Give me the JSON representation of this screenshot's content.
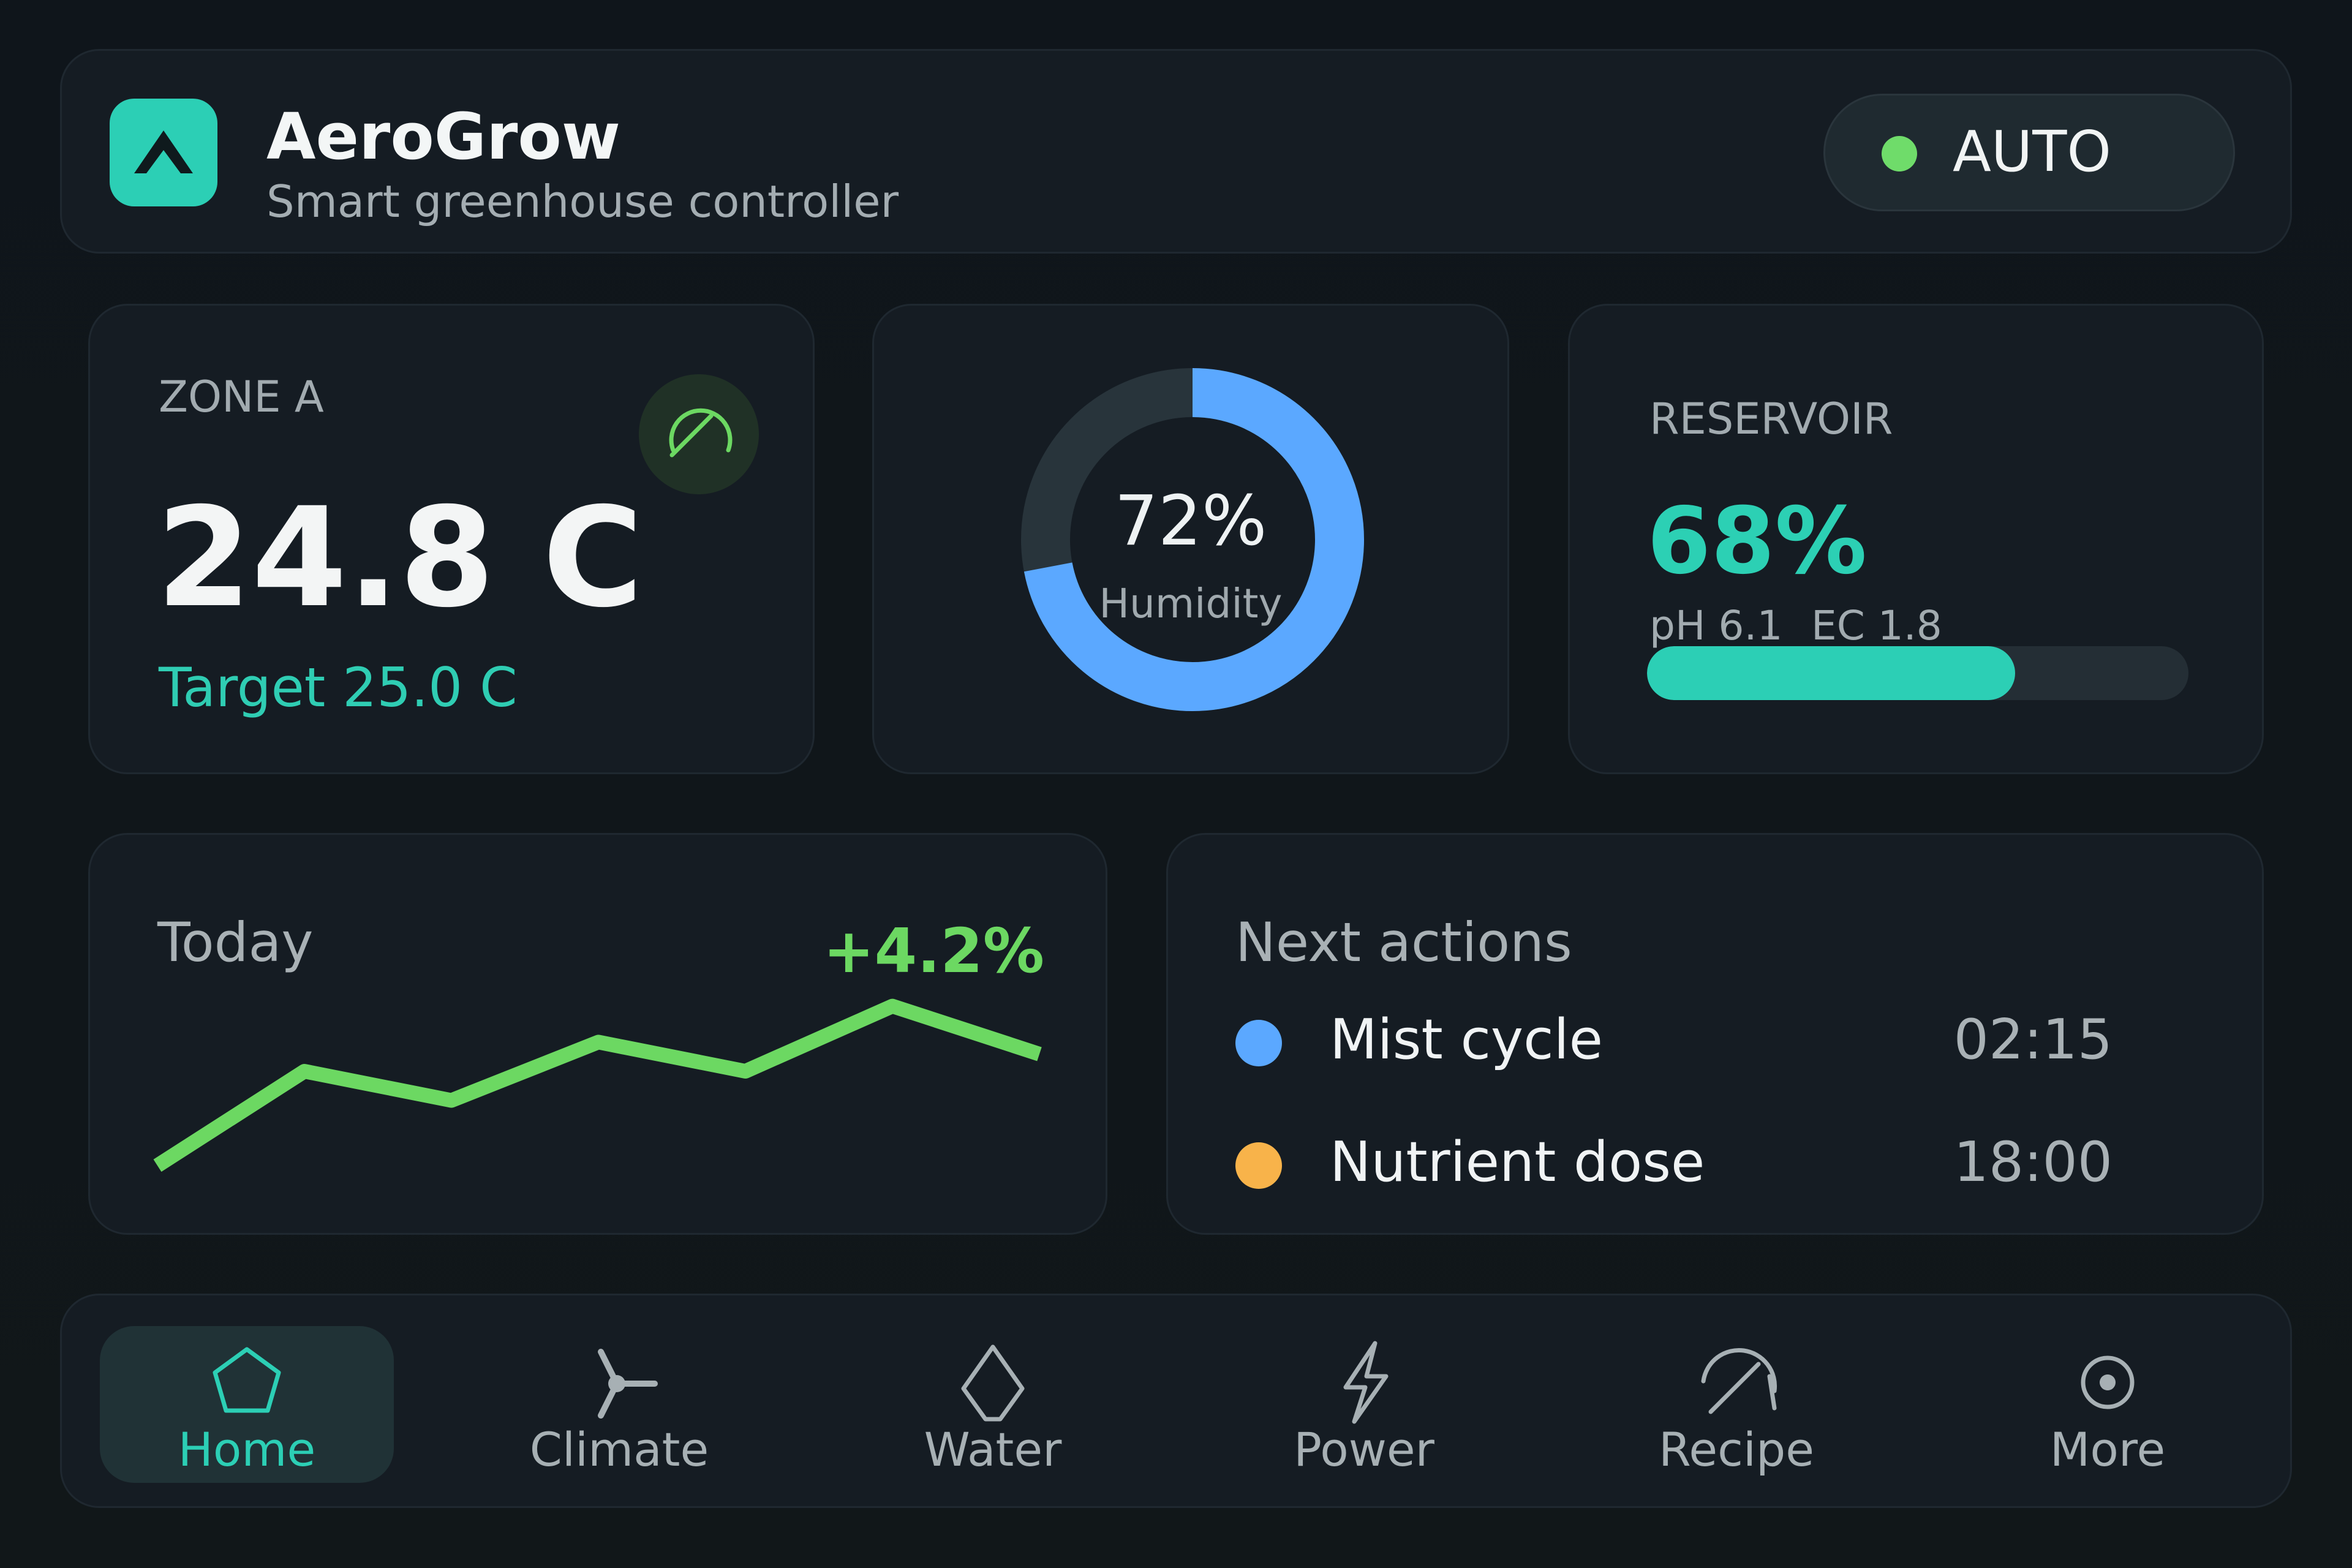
{
  "header": {
    "title": "AeroGrow",
    "subtitle": "Smart greenhouse controller",
    "mode": "AUTO",
    "logo_icon": "caret-up-icon",
    "colors": {
      "accent": "#2ccfb5",
      "status_on": "#6fdc6a"
    }
  },
  "zone": {
    "label": "ZONE A",
    "temperature": "24.8 C",
    "target": "Target 25.0 C",
    "icon": "gauge-icon"
  },
  "humidity": {
    "value_text": "72%",
    "label": "Humidity",
    "percent": 72,
    "color": "#5ba8ff"
  },
  "reservoir": {
    "label": "RESERVOIR",
    "value_text": "68%",
    "ph": "pH 6.1",
    "ec": "EC 1.8",
    "level": 0.68
  },
  "today": {
    "label": "Today",
    "change": "+4.2%",
    "color": "#6cd862",
    "chart_data": {
      "type": "line",
      "series": [
        {
          "values": [
            0.0,
            0.55,
            0.38,
            0.72,
            0.55,
            0.93,
            0.65
          ]
        }
      ]
    }
  },
  "actions": {
    "title": "Next actions",
    "items": [
      {
        "name": "Mist cycle",
        "time": "02:15",
        "color": "#5ba8ff"
      },
      {
        "name": "Nutrient dose",
        "time": "18:00",
        "color": "#f8b34a"
      }
    ]
  },
  "nav": {
    "items": [
      {
        "label": "Home",
        "icon": "home-icon",
        "active": true
      },
      {
        "label": "Climate",
        "icon": "fan-icon",
        "active": false
      },
      {
        "label": "Water",
        "icon": "water-drop-icon",
        "active": false
      },
      {
        "label": "Power",
        "icon": "lightning-icon",
        "active": false
      },
      {
        "label": "Recipe",
        "icon": "gauge-icon",
        "active": false
      },
      {
        "label": "More",
        "icon": "more-circle-icon",
        "active": false
      }
    ]
  }
}
